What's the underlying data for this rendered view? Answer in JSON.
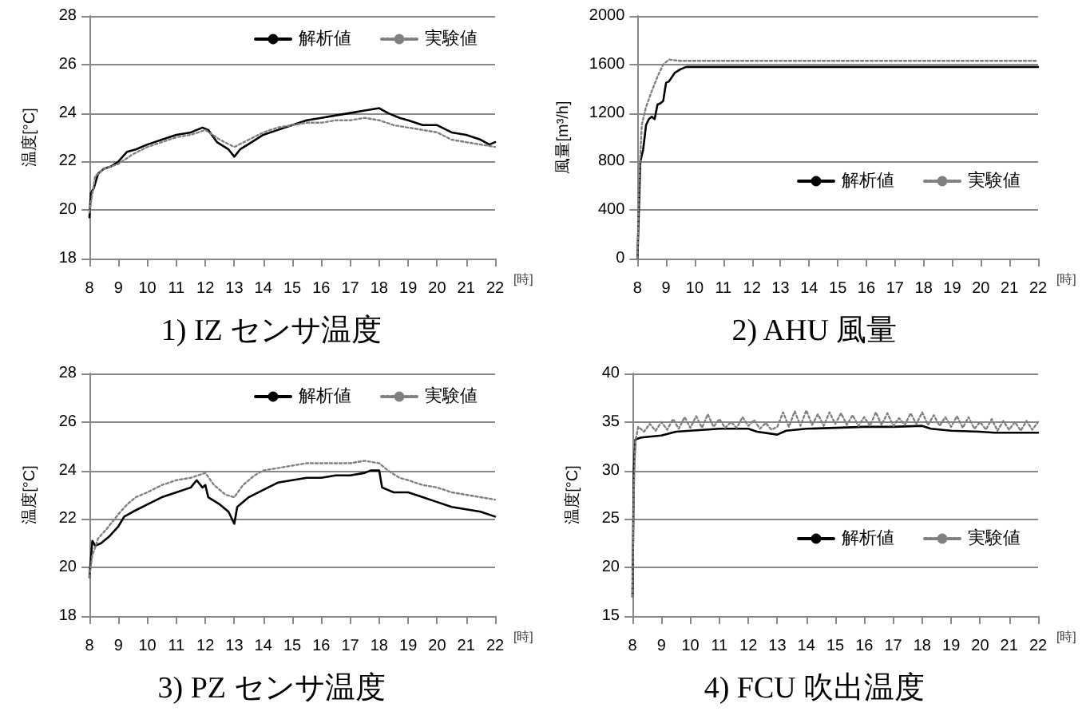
{
  "chart_data": [
    {
      "type": "line",
      "title": "1) IZ センサ温度",
      "xlabel": "[時]",
      "ylabel": "温度[°C]",
      "xlim": [
        8,
        22
      ],
      "xticks": [
        8,
        9,
        10,
        11,
        12,
        13,
        14,
        15,
        16,
        17,
        18,
        19,
        20,
        21,
        22
      ],
      "ylim": [
        18,
        28
      ],
      "yticks": [
        18,
        20,
        22,
        24,
        26,
        28
      ],
      "grid": "y",
      "legend": "top right",
      "marker": "none",
      "series": [
        {
          "name": "解析値",
          "color": "#000000",
          "line_style": "solid",
          "x": [
            8,
            8.05,
            8.15,
            8.3,
            8.5,
            8.75,
            9,
            9.3,
            9.6,
            10,
            10.5,
            11,
            11.5,
            11.9,
            12.1,
            12.4,
            12.8,
            13,
            13.2,
            13.6,
            14,
            14.5,
            15,
            15.5,
            16,
            16.5,
            17,
            17.5,
            18,
            18.3,
            18.7,
            19,
            19.5,
            20,
            20.5,
            21,
            21.5,
            21.8,
            22
          ],
          "values": [
            19.7,
            20.7,
            20.9,
            21.5,
            21.7,
            21.8,
            22.0,
            22.4,
            22.5,
            22.7,
            22.9,
            23.1,
            23.2,
            23.4,
            23.3,
            22.8,
            22.5,
            22.2,
            22.5,
            22.8,
            23.1,
            23.3,
            23.5,
            23.7,
            23.8,
            23.9,
            24.0,
            24.1,
            24.2,
            24.0,
            23.8,
            23.7,
            23.5,
            23.5,
            23.2,
            23.1,
            22.9,
            22.7,
            22.8
          ]
        },
        {
          "name": "実験値",
          "color": "#808080",
          "line_style": "dotted",
          "x": [
            8,
            8.05,
            8.2,
            8.5,
            9,
            9.5,
            10,
            10.5,
            11,
            11.5,
            12,
            12.5,
            13,
            13.5,
            14,
            14.5,
            15,
            15.5,
            16,
            16.5,
            17,
            17.5,
            18,
            18.5,
            19,
            19.5,
            20,
            20.5,
            21,
            21.5,
            22
          ],
          "values": [
            19.9,
            20.3,
            21.4,
            21.7,
            21.9,
            22.3,
            22.6,
            22.8,
            23.0,
            23.1,
            23.3,
            22.9,
            22.6,
            22.9,
            23.2,
            23.4,
            23.5,
            23.6,
            23.6,
            23.7,
            23.7,
            23.8,
            23.7,
            23.5,
            23.4,
            23.3,
            23.2,
            22.9,
            22.8,
            22.7,
            22.6
          ]
        }
      ]
    },
    {
      "type": "line",
      "title": "2) AHU 風量",
      "xlabel": "[時]",
      "ylabel": "風量[m³/h]",
      "xlim": [
        8,
        22
      ],
      "xticks": [
        8,
        9,
        10,
        11,
        12,
        13,
        14,
        15,
        16,
        17,
        18,
        19,
        20,
        21,
        22
      ],
      "ylim": [
        0,
        2000
      ],
      "yticks": [
        0,
        400,
        800,
        1200,
        1600,
        2000
      ],
      "grid": "y",
      "legend": "bottom right",
      "marker": "none",
      "series": [
        {
          "name": "解析値",
          "color": "#000000",
          "line_style": "solid",
          "x": [
            8,
            8.05,
            8.1,
            8.2,
            8.3,
            8.4,
            8.5,
            8.6,
            8.7,
            8.8,
            8.9,
            9,
            9.1,
            9.3,
            9.5,
            9.7,
            10,
            22
          ],
          "values": [
            0,
            400,
            800,
            900,
            1100,
            1150,
            1170,
            1150,
            1270,
            1280,
            1300,
            1450,
            1460,
            1530,
            1560,
            1580,
            1580,
            1580
          ]
        },
        {
          "name": "実験値",
          "color": "#808080",
          "line_style": "dotted",
          "x": [
            8,
            8.05,
            8.15,
            8.3,
            8.5,
            8.7,
            8.9,
            9.1,
            9.5,
            22
          ],
          "values": [
            0,
            600,
            1100,
            1250,
            1380,
            1500,
            1600,
            1640,
            1630,
            1630
          ]
        }
      ]
    },
    {
      "type": "line",
      "title": "3) PZ センサ温度",
      "xlabel": "[時]",
      "ylabel": "温度[°C]",
      "xlim": [
        8,
        22
      ],
      "xticks": [
        8,
        9,
        10,
        11,
        12,
        13,
        14,
        15,
        16,
        17,
        18,
        19,
        20,
        21,
        22
      ],
      "ylim": [
        18,
        28
      ],
      "yticks": [
        18,
        20,
        22,
        24,
        26,
        28
      ],
      "grid": "y",
      "legend": "top right",
      "marker": "none",
      "series": [
        {
          "name": "解析値",
          "color": "#000000",
          "line_style": "solid",
          "x": [
            8,
            8.1,
            8.2,
            8.4,
            8.7,
            9,
            9.2,
            9.5,
            10,
            10.5,
            11,
            11.5,
            11.7,
            11.9,
            12,
            12.1,
            12.5,
            12.8,
            13,
            13.1,
            13.5,
            14,
            14.5,
            15,
            15.5,
            16,
            16.5,
            17,
            17.5,
            17.7,
            18,
            18.1,
            18.5,
            19,
            19.5,
            20,
            20.5,
            21,
            21.5,
            22
          ],
          "values": [
            19.6,
            21.1,
            20.9,
            21.0,
            21.3,
            21.7,
            22.1,
            22.3,
            22.6,
            22.9,
            23.1,
            23.3,
            23.6,
            23.3,
            23.4,
            22.9,
            22.6,
            22.3,
            21.8,
            22.5,
            22.9,
            23.2,
            23.5,
            23.6,
            23.7,
            23.7,
            23.8,
            23.8,
            23.9,
            24.0,
            24.0,
            23.3,
            23.1,
            23.1,
            22.9,
            22.7,
            22.5,
            22.4,
            22.3,
            22.1
          ]
        },
        {
          "name": "実験値",
          "color": "#808080",
          "line_style": "dotted",
          "x": [
            8,
            8.1,
            8.3,
            8.6,
            9,
            9.3,
            9.6,
            10,
            10.5,
            11,
            11.5,
            12,
            12.3,
            12.7,
            13,
            13.3,
            13.7,
            14,
            14.5,
            15,
            15.5,
            16,
            16.5,
            17,
            17.5,
            18,
            18.3,
            18.7,
            19,
            19.5,
            20,
            20.5,
            21,
            21.5,
            22
          ],
          "values": [
            19.6,
            20.5,
            21.2,
            21.6,
            22.2,
            22.6,
            22.9,
            23.1,
            23.4,
            23.6,
            23.7,
            23.9,
            23.4,
            23.0,
            22.9,
            23.4,
            23.8,
            24.0,
            24.1,
            24.2,
            24.3,
            24.3,
            24.3,
            24.3,
            24.4,
            24.3,
            24.0,
            23.7,
            23.6,
            23.4,
            23.3,
            23.1,
            23.0,
            22.9,
            22.8
          ]
        }
      ]
    },
    {
      "type": "line",
      "title": "4) FCU 吹出温度",
      "xlabel": "[時]",
      "ylabel": "温度[°C]",
      "xlim": [
        8,
        22
      ],
      "xticks": [
        8,
        9,
        10,
        11,
        12,
        13,
        14,
        15,
        16,
        17,
        18,
        19,
        20,
        21,
        22
      ],
      "ylim": [
        15,
        40
      ],
      "yticks": [
        15,
        20,
        25,
        30,
        35,
        40
      ],
      "grid": "y",
      "legend": "bottom right",
      "marker": "none",
      "series": [
        {
          "name": "解析値",
          "color": "#000000",
          "line_style": "solid",
          "x": [
            8,
            8.05,
            8.1,
            8.3,
            9,
            9.5,
            10,
            11,
            12,
            12.3,
            13,
            13.3,
            14,
            15,
            16,
            17,
            18,
            18.3,
            19,
            20,
            20.5,
            22
          ],
          "values": [
            17,
            30,
            33.2,
            33.4,
            33.6,
            34.0,
            34.1,
            34.3,
            34.3,
            34.0,
            33.7,
            34.1,
            34.3,
            34.4,
            34.5,
            34.5,
            34.6,
            34.3,
            34.1,
            34.0,
            33.9,
            33.9
          ]
        },
        {
          "name": "実験値",
          "color": "#808080",
          "line_style": "dotted",
          "x": [
            8,
            8.05,
            8.1,
            8.2,
            8.4,
            8.6,
            8.8,
            9,
            9.2,
            9.4,
            9.6,
            9.8,
            10,
            10.2,
            10.4,
            10.6,
            10.8,
            11,
            11.2,
            11.4,
            11.6,
            11.8,
            12,
            12.2,
            12.4,
            12.6,
            12.8,
            13,
            13.2,
            13.4,
            13.6,
            13.8,
            14,
            14.2,
            14.4,
            14.6,
            14.8,
            15,
            15.2,
            15.4,
            15.6,
            15.8,
            16,
            16.2,
            16.4,
            16.6,
            16.8,
            17,
            17.2,
            17.4,
            17.6,
            17.8,
            18,
            18.2,
            18.4,
            18.6,
            18.8,
            19,
            19.2,
            19.4,
            19.6,
            19.8,
            20,
            20.2,
            20.4,
            20.6,
            20.8,
            21,
            21.2,
            21.4,
            21.6,
            21.8,
            22
          ],
          "values": [
            17,
            28,
            33,
            34.5,
            34.0,
            34.8,
            34.1,
            35.0,
            34.2,
            35.3,
            34.3,
            35.5,
            34.4,
            35.6,
            34.4,
            35.8,
            34.5,
            35.3,
            34.4,
            35.0,
            34.4,
            35.5,
            34.6,
            35.2,
            34.3,
            34.9,
            34.2,
            34.5,
            36.0,
            34.5,
            36.1,
            34.6,
            36.2,
            34.7,
            35.8,
            34.6,
            36.0,
            34.8,
            35.9,
            34.7,
            35.7,
            34.6,
            35.5,
            34.6,
            36.0,
            34.7,
            35.9,
            34.6,
            35.4,
            34.7,
            35.9,
            34.8,
            36.0,
            34.7,
            35.7,
            34.6,
            35.5,
            34.5,
            35.6,
            34.4,
            35.5,
            34.3,
            35.0,
            34.2,
            35.3,
            34.1,
            35.1,
            34.2,
            35.0,
            34.1,
            35.1,
            34.2,
            35.0
          ]
        }
      ]
    }
  ]
}
